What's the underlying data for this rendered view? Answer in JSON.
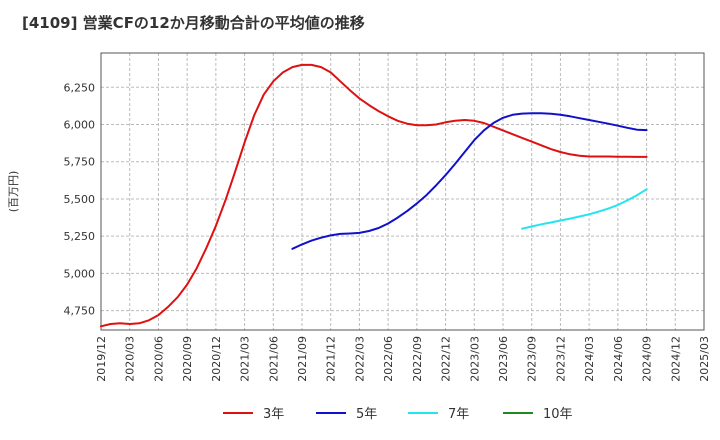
{
  "chart_data": {
    "type": "line",
    "title": "[4109]  営業CFの12か月移動合計の平均値の推移",
    "ylabel": "(百万円)",
    "xlabel": "",
    "ylim": [
      4620,
      6480
    ],
    "yticks": [
      4750,
      5000,
      5250,
      5500,
      5750,
      6000,
      6250
    ],
    "ytick_labels": [
      "4,750",
      "5,000",
      "5,250",
      "5,500",
      "5,750",
      "6,000",
      "6,250"
    ],
    "xticks": [
      "2019/12",
      "2020/03",
      "2020/06",
      "2020/09",
      "2020/12",
      "2021/03",
      "2021/06",
      "2021/09",
      "2021/12",
      "2022/03",
      "2022/06",
      "2022/09",
      "2022/12",
      "2023/03",
      "2023/06",
      "2023/09",
      "2023/12",
      "2024/03",
      "2024/06",
      "2024/09",
      "2024/12",
      "2025/03"
    ],
    "grid": true,
    "legend_position": "bottom",
    "series": [
      {
        "name": "3年",
        "color": "#dd1111",
        "x": [
          "2019/12",
          "2020/01",
          "2020/02",
          "2020/03",
          "2020/04",
          "2020/05",
          "2020/06",
          "2020/07",
          "2020/08",
          "2020/09",
          "2020/10",
          "2020/11",
          "2020/12",
          "2021/01",
          "2021/02",
          "2021/03",
          "2021/04",
          "2021/05",
          "2021/06",
          "2021/07",
          "2021/08",
          "2021/09",
          "2021/10",
          "2021/11",
          "2021/12",
          "2022/01",
          "2022/02",
          "2022/03",
          "2022/04",
          "2022/05",
          "2022/06",
          "2022/07",
          "2022/08",
          "2022/09",
          "2022/10",
          "2022/11",
          "2022/12",
          "2023/01",
          "2023/02",
          "2023/03",
          "2023/04",
          "2023/05",
          "2023/06",
          "2023/07",
          "2023/08",
          "2023/09",
          "2023/10",
          "2023/11",
          "2023/12",
          "2024/01",
          "2024/02",
          "2024/03",
          "2024/04",
          "2024/05",
          "2024/06",
          "2024/07",
          "2024/08",
          "2024/09"
        ],
        "values": [
          4645,
          4660,
          4665,
          4660,
          4665,
          4685,
          4720,
          4775,
          4840,
          4925,
          5035,
          5170,
          5320,
          5490,
          5680,
          5880,
          6060,
          6200,
          6290,
          6350,
          6385,
          6400,
          6400,
          6385,
          6350,
          6290,
          6230,
          6175,
          6130,
          6090,
          6055,
          6025,
          6005,
          5995,
          5995,
          6000,
          6015,
          6025,
          6030,
          6025,
          6010,
          5985,
          5960,
          5935,
          5910,
          5885,
          5860,
          5835,
          5815,
          5800,
          5790,
          5785,
          5785,
          5785,
          5784,
          5783,
          5782,
          5782
        ]
      },
      {
        "name": "5年",
        "color": "#1111cc",
        "x": [
          "2021/08",
          "2021/09",
          "2021/10",
          "2021/11",
          "2021/12",
          "2022/01",
          "2022/02",
          "2022/03",
          "2022/04",
          "2022/05",
          "2022/06",
          "2022/07",
          "2022/08",
          "2022/09",
          "2022/10",
          "2022/11",
          "2022/12",
          "2023/01",
          "2023/02",
          "2023/03",
          "2023/04",
          "2023/05",
          "2023/06",
          "2023/07",
          "2023/08",
          "2023/09",
          "2023/10",
          "2023/11",
          "2023/12",
          "2024/01",
          "2024/02",
          "2024/03",
          "2024/04",
          "2024/05",
          "2024/06",
          "2024/07",
          "2024/08",
          "2024/09"
        ],
        "values": [
          5165,
          5195,
          5220,
          5240,
          5255,
          5265,
          5268,
          5272,
          5285,
          5305,
          5335,
          5375,
          5420,
          5470,
          5525,
          5590,
          5660,
          5735,
          5815,
          5895,
          5960,
          6010,
          6045,
          6065,
          6073,
          6075,
          6075,
          6072,
          6065,
          6055,
          6042,
          6030,
          6018,
          6005,
          5992,
          5978,
          5965,
          5962
        ]
      },
      {
        "name": "7年",
        "color": "#22e5f0",
        "x": [
          "2023/08",
          "2023/09",
          "2023/10",
          "2023/11",
          "2023/12",
          "2024/01",
          "2024/02",
          "2024/03",
          "2024/04",
          "2024/05",
          "2024/06",
          "2024/07",
          "2024/08",
          "2024/09"
        ],
        "values": [
          5300,
          5315,
          5330,
          5342,
          5355,
          5368,
          5382,
          5397,
          5415,
          5435,
          5460,
          5490,
          5525,
          5565
        ]
      },
      {
        "name": "10年",
        "color": "#228822",
        "x": [],
        "values": []
      }
    ]
  }
}
